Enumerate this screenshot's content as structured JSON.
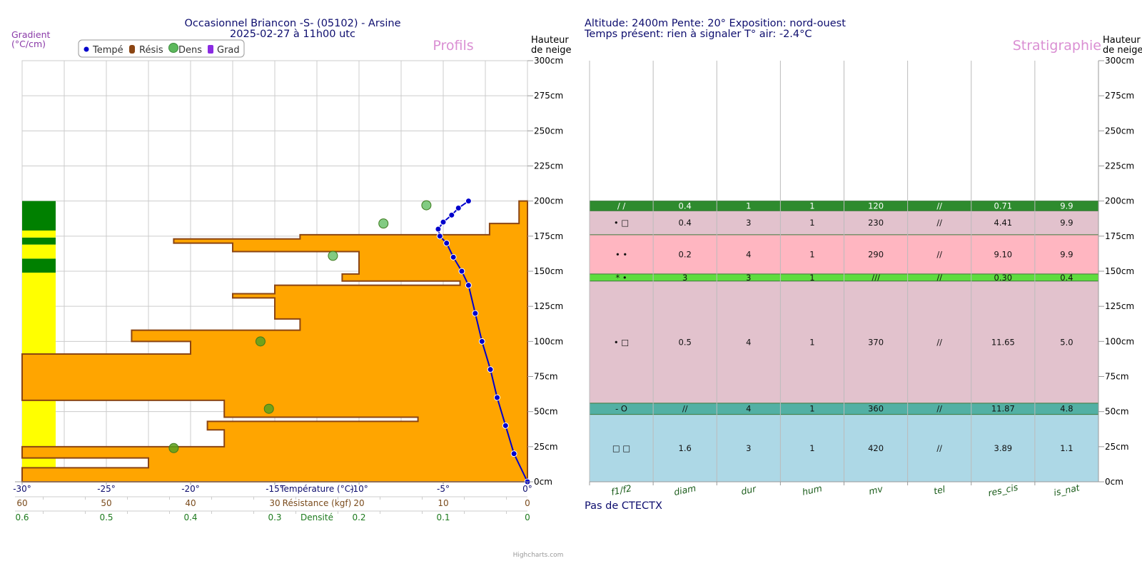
{
  "left_panel": {
    "title_line1": "Occasionnel Briancon -S- (05102) - Arsine",
    "title_line2": "2025-02-27 à 11h00 utc",
    "gradient_label_line1": "Gradient",
    "gradient_label_line2": "(°C/cm)",
    "watermark": "Profils",
    "height_label_line1": "Hauteur",
    "height_label_line2": "de neige",
    "legend": [
      "Tempé",
      "Résis",
      "Dens",
      "Grad"
    ],
    "temp_axis_title": "Température (°C)",
    "res_axis_title": "Résistance (kgf)",
    "dens_axis_title": "Densité",
    "credit": "Highcharts.com"
  },
  "right_panel": {
    "header_line1": "Altitude: 2400m Pente: 20° Exposition: nord-ouest",
    "header_line2": "Temps présent: rien à signaler T° air: -2.4°C",
    "watermark": "Stratigraphie",
    "height_label_line1": "Hauteur",
    "height_label_line2": "de neige",
    "footer": "Pas de CTECTX"
  },
  "colors": {
    "temperature": "#0000cc",
    "resistance_fill": "#ffa500",
    "resistance_stroke": "#8b4513",
    "density": "#5cb85c",
    "gradient_legend": "#8a2be2",
    "title": "#0d0d6e",
    "watermark": "#da8fd3"
  },
  "chart_data": [
    {
      "type": "line",
      "name": "Tempé",
      "title": "Occasionnel Briancon -S- (05102) - Arsine",
      "xlabel": "Température (°C)",
      "ylabel": "Hauteur de neige",
      "xlim": [
        -30,
        0
      ],
      "ylim": [
        0,
        300
      ],
      "x_ticks": [
        "-30°",
        "-25°",
        "-20°",
        "-15°",
        "-10°",
        "-5°",
        "0°"
      ],
      "y_ticks": [
        "0cm",
        "25cm",
        "50cm",
        "75cm",
        "100cm",
        "125cm",
        "150cm",
        "175cm",
        "200cm",
        "225cm",
        "250cm",
        "275cm",
        "300cm"
      ],
      "points": [
        {
          "t": 0,
          "h": 0
        },
        {
          "t": -0.8,
          "h": 20
        },
        {
          "t": -1.3,
          "h": 40
        },
        {
          "t": -1.8,
          "h": 60
        },
        {
          "t": -2.2,
          "h": 80
        },
        {
          "t": -2.7,
          "h": 100
        },
        {
          "t": -3.1,
          "h": 120
        },
        {
          "t": -3.5,
          "h": 140
        },
        {
          "t": -3.9,
          "h": 150
        },
        {
          "t": -4.4,
          "h": 160
        },
        {
          "t": -4.8,
          "h": 170
        },
        {
          "t": -5.2,
          "h": 175
        },
        {
          "t": -5.3,
          "h": 180
        },
        {
          "t": -5.0,
          "h": 185
        },
        {
          "t": -4.5,
          "h": 190
        },
        {
          "t": -4.1,
          "h": 195
        },
        {
          "t": -3.5,
          "h": 200
        }
      ]
    },
    {
      "type": "area",
      "name": "Résis",
      "xlabel": "Résistance (kgf)",
      "xlim": [
        60,
        0
      ],
      "x_ticks": [
        "60",
        "50",
        "40",
        "30",
        "20",
        "10",
        "0"
      ],
      "layers": [
        {
          "from": 0,
          "to": 10,
          "r": 60
        },
        {
          "from": 10,
          "to": 17,
          "r": 45
        },
        {
          "from": 17,
          "to": 25,
          "r": 60
        },
        {
          "from": 25,
          "to": 37,
          "r": 36
        },
        {
          "from": 37,
          "to": 43,
          "r": 38
        },
        {
          "from": 43,
          "to": 46,
          "r": 13
        },
        {
          "from": 46,
          "to": 58,
          "r": 36
        },
        {
          "from": 58,
          "to": 91,
          "r": 60
        },
        {
          "from": 91,
          "to": 100,
          "r": 40
        },
        {
          "from": 100,
          "to": 108,
          "r": 47
        },
        {
          "from": 108,
          "to": 116,
          "r": 27
        },
        {
          "from": 116,
          "to": 131,
          "r": 30
        },
        {
          "from": 131,
          "to": 134,
          "r": 35
        },
        {
          "from": 134,
          "to": 140,
          "r": 30
        },
        {
          "from": 140,
          "to": 143,
          "r": 8
        },
        {
          "from": 143,
          "to": 148,
          "r": 22
        },
        {
          "from": 148,
          "to": 164,
          "r": 20
        },
        {
          "from": 164,
          "to": 170,
          "r": 35
        },
        {
          "from": 170,
          "to": 173,
          "r": 42
        },
        {
          "from": 173,
          "to": 176,
          "r": 27
        },
        {
          "from": 176,
          "to": 184,
          "r": 4.5
        },
        {
          "from": 184,
          "to": 200,
          "r": 1
        }
      ]
    },
    {
      "type": "scatter",
      "name": "Dens",
      "xlabel": "Densité",
      "xlim": [
        0.6,
        0
      ],
      "x_ticks": [
        "0.6",
        "0.5",
        "0.4",
        "0.3",
        "0.2",
        "0.1",
        "0"
      ],
      "points": [
        {
          "d": 0.42,
          "h": 24
        },
        {
          "d": 0.307,
          "h": 52
        },
        {
          "d": 0.317,
          "h": 100
        },
        {
          "d": 0.231,
          "h": 161
        },
        {
          "d": 0.171,
          "h": 184
        },
        {
          "d": 0.12,
          "h": 197
        }
      ]
    },
    {
      "type": "table",
      "name": "Stratigraphie",
      "columns": [
        "f1/f2",
        "diam",
        "dur",
        "hum",
        "mv",
        "tel",
        "res_cis",
        "is_nat"
      ],
      "rows": [
        {
          "bottom": 193,
          "top": 200,
          "color": "#2e8b2e",
          "cells": [
            "/ /",
            "0.4",
            "1",
            "1",
            "120",
            "//",
            "0.71",
            "9.9"
          ]
        },
        {
          "bottom": 176,
          "top": 193,
          "color": "#e2c2cd",
          "cells": [
            "• □",
            "0.4",
            "3",
            "1",
            "230",
            "//",
            "4.41",
            "9.9"
          ]
        },
        {
          "bottom": 148,
          "top": 176,
          "color": "#ffb6c1",
          "cells": [
            "• •",
            "0.2",
            "4",
            "1",
            "290",
            "//",
            "9.10",
            "9.9"
          ]
        },
        {
          "bottom": 143,
          "top": 148,
          "color": "#5fdc3f",
          "cells": [
            "* •",
            "3",
            "3",
            "1",
            "///",
            "//",
            "0.30",
            "0.4"
          ]
        },
        {
          "bottom": 56,
          "top": 143,
          "color": "#e2c2cd",
          "cells": [
            "• □",
            "0.5",
            "4",
            "1",
            "370",
            "//",
            "11.65",
            "5.0"
          ]
        },
        {
          "bottom": 48,
          "top": 56,
          "color": "#52b0a4",
          "cells": [
            "- O",
            "//",
            "4",
            "1",
            "360",
            "//",
            "11.87",
            "4.8"
          ]
        },
        {
          "bottom": 0,
          "top": 48,
          "color": "#add8e6",
          "cells": [
            "□ □",
            "1.6",
            "3",
            "1",
            "420",
            "//",
            "3.89",
            "1.1"
          ]
        }
      ]
    },
    {
      "type": "bar",
      "name": "Grad",
      "segments": [
        {
          "from": 0,
          "to": 149,
          "color": "#ffff00"
        },
        {
          "from": 149,
          "to": 159,
          "color": "#008000"
        },
        {
          "from": 159,
          "to": 169,
          "color": "#ffff00"
        },
        {
          "from": 169,
          "to": 174,
          "color": "#008000"
        },
        {
          "from": 174,
          "to": 179,
          "color": "#ffff00"
        },
        {
          "from": 179,
          "to": 200,
          "color": "#008000"
        }
      ]
    }
  ]
}
